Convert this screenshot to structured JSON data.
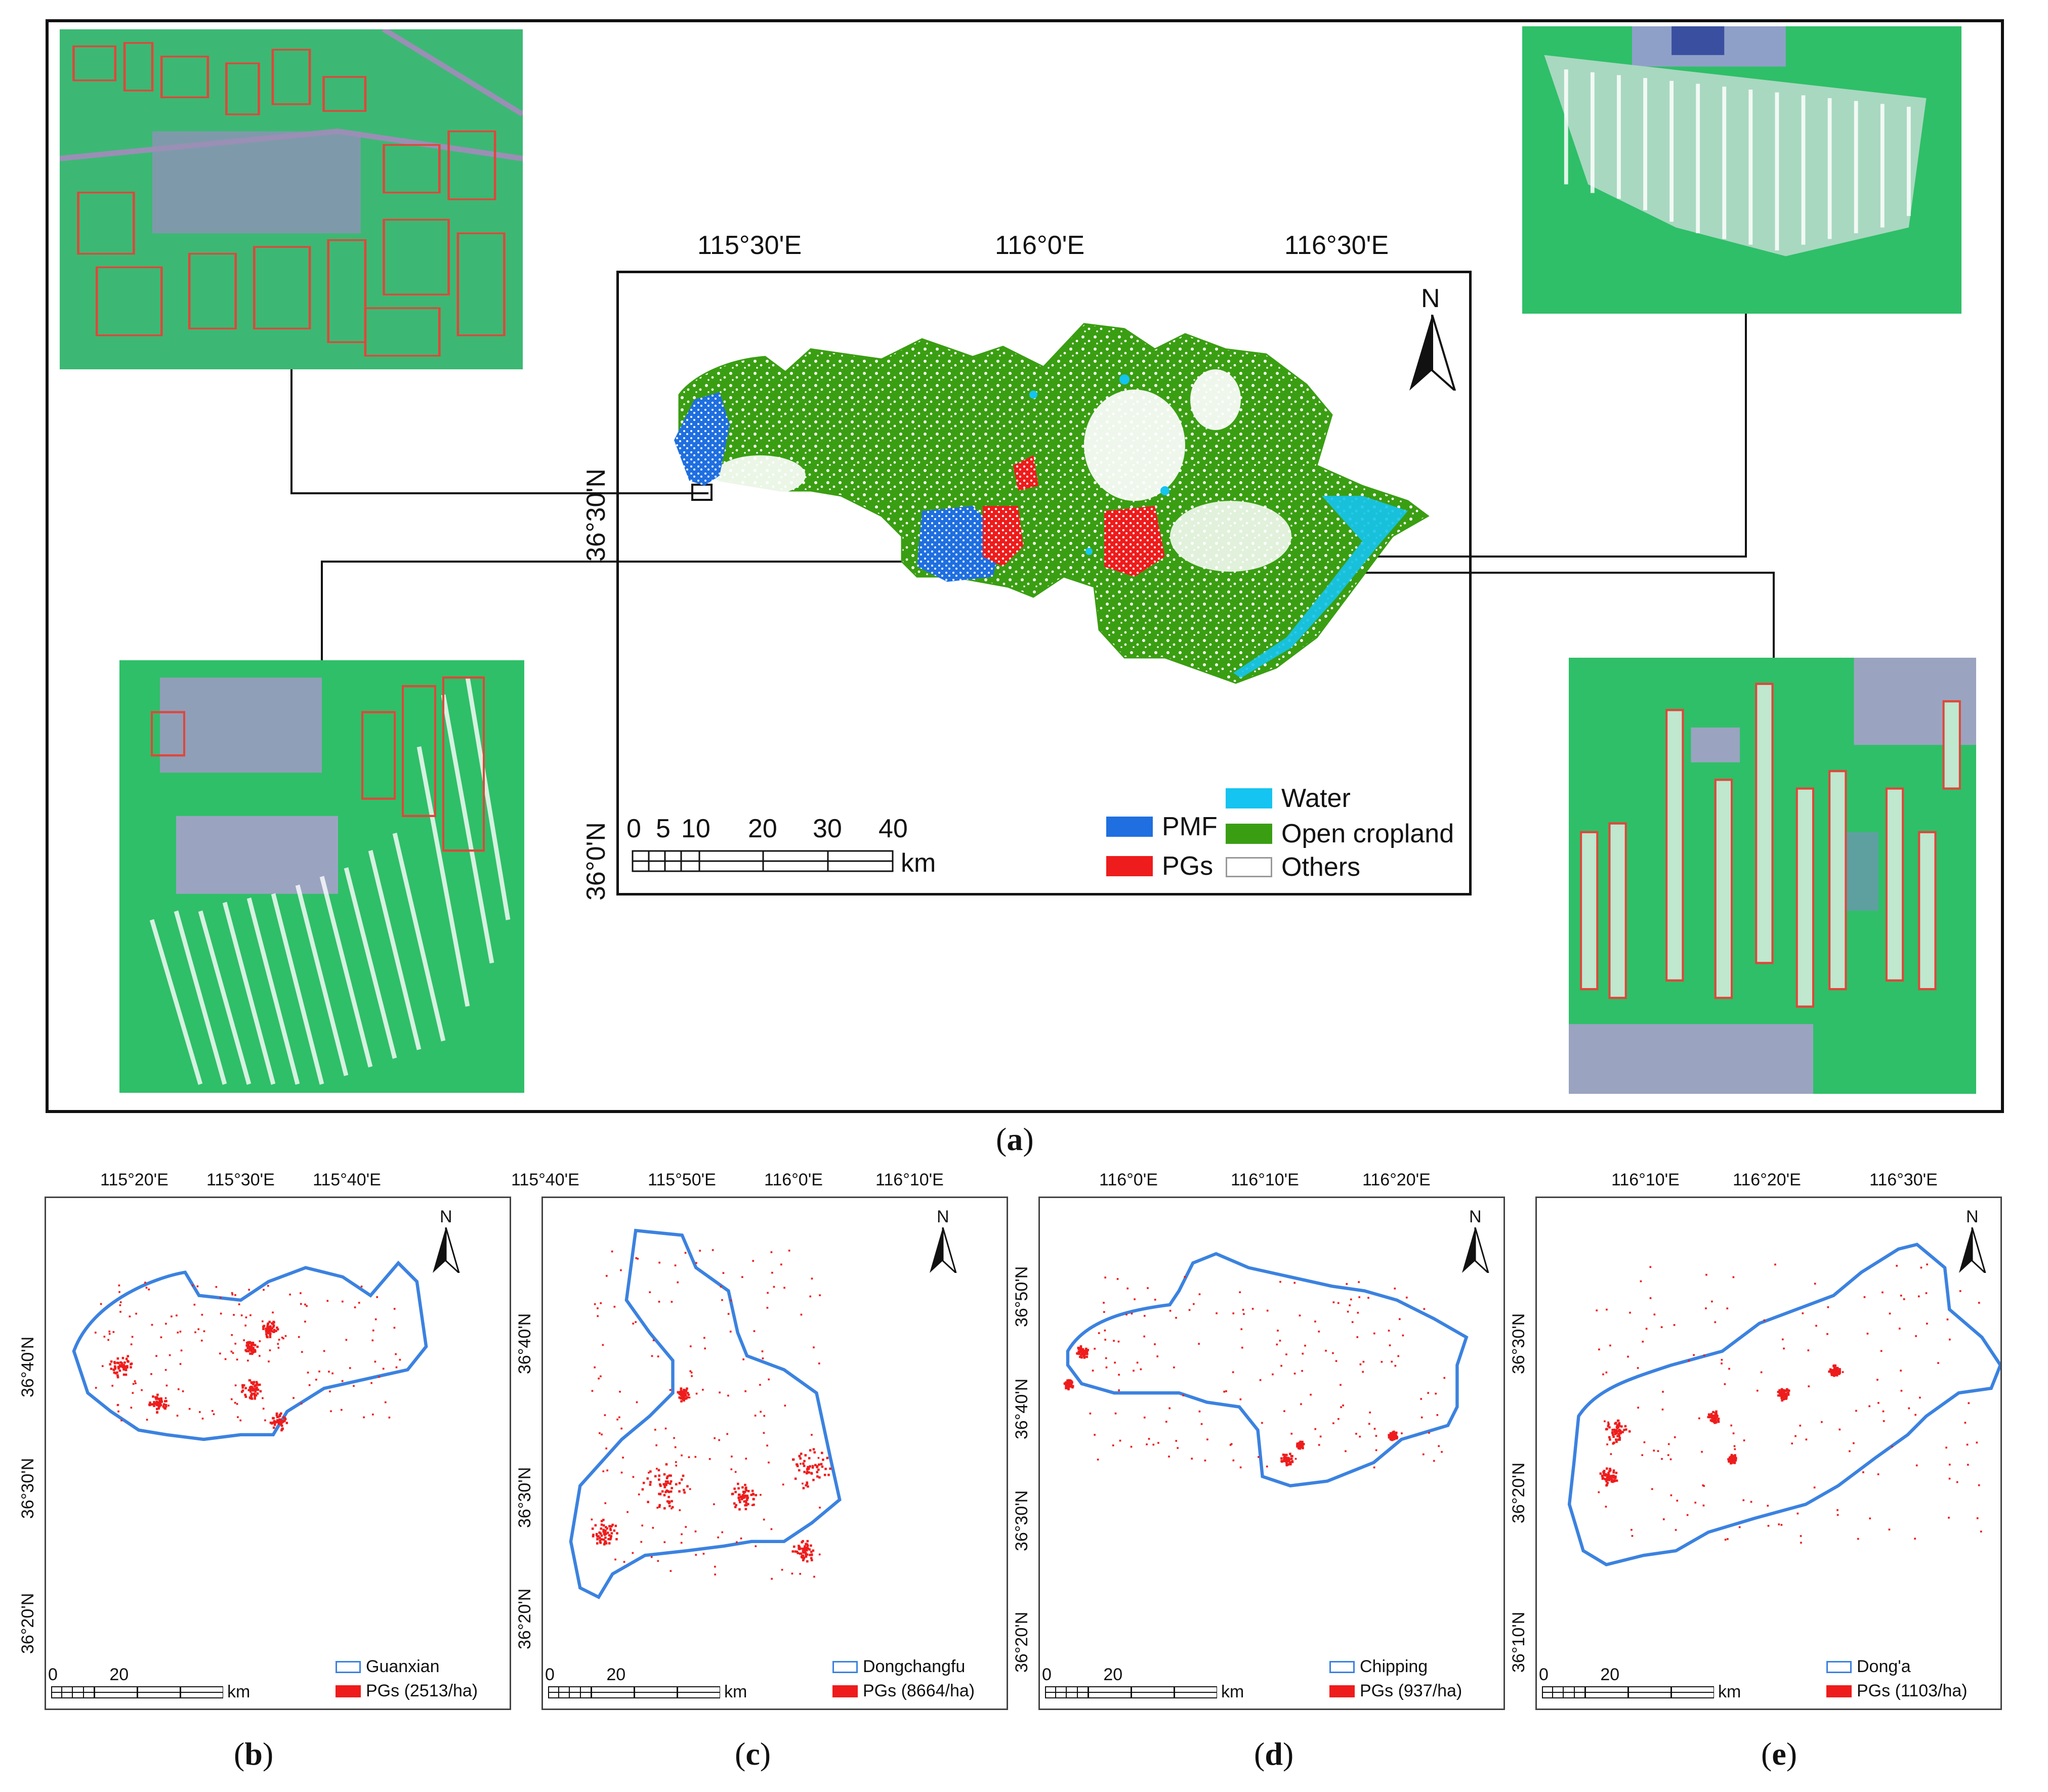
{
  "panel_a": {
    "label": "a",
    "top_ticks": [
      "115°30'E",
      "116°0'E",
      "116°30'E"
    ],
    "left_ticks": [
      "36°30'N",
      "36°0'N"
    ],
    "north": "N",
    "scale_numbers": [
      "0",
      "5",
      "10",
      "20",
      "30",
      "40"
    ],
    "scale_unit": "km",
    "legend": [
      {
        "label": "PMF",
        "color": "#1f6fe0"
      },
      {
        "label": "Water",
        "color": "#15c4f0"
      },
      {
        "label": "PGs",
        "color": "#ee1c1c"
      },
      {
        "label": "Open cropland",
        "color": "#3a9e12"
      },
      {
        "label": "Others",
        "color": "#ffffff"
      }
    ]
  },
  "sub_panels": [
    {
      "id": "b",
      "label": "b",
      "top_ticks": [
        "115°20'E",
        "115°30'E",
        "115°40'E"
      ],
      "left_ticks": [
        "36°40'N",
        "36°30'N",
        "36°20'N"
      ],
      "north": "N",
      "scale_numbers": [
        "0",
        "20"
      ],
      "scale_unit": "km",
      "legend": [
        "Guanxian",
        "PGs (2513/ha)"
      ]
    },
    {
      "id": "c",
      "label": "c",
      "top_ticks": [
        "115°40'E",
        "115°50'E",
        "116°0'E",
        "116°10'E"
      ],
      "left_ticks": [
        "36°40'N",
        "36°30'N",
        "36°20'N"
      ],
      "north": "N",
      "scale_numbers": [
        "0",
        "20"
      ],
      "scale_unit": "km",
      "legend": [
        "Dongchangfu",
        "PGs  (8664/ha)"
      ]
    },
    {
      "id": "d",
      "label": "d",
      "top_ticks": [
        "116°0'E",
        "116°10'E",
        "116°20'E"
      ],
      "left_ticks": [
        "36°50'N",
        "36°40'N",
        "36°30'N",
        "36°20'N"
      ],
      "north": "N",
      "scale_numbers": [
        "0",
        "20"
      ],
      "scale_unit": "km",
      "legend": [
        "Chipping",
        "PGs (937/ha)"
      ]
    },
    {
      "id": "e",
      "label": "e",
      "top_ticks": [
        "116°10'E",
        "116°20'E",
        "116°30'E"
      ],
      "left_ticks": [
        "36°30'N",
        "36°20'N",
        "36°10'N"
      ],
      "north": "N",
      "scale_numbers": [
        "0",
        "20"
      ],
      "scale_unit": "km",
      "legend": [
        "Dong'a",
        "PGs (1103/ha)"
      ]
    }
  ],
  "colors": {
    "boundary": "#3b82e0",
    "pgs": "#ee1c1c",
    "frame": "#111111"
  }
}
